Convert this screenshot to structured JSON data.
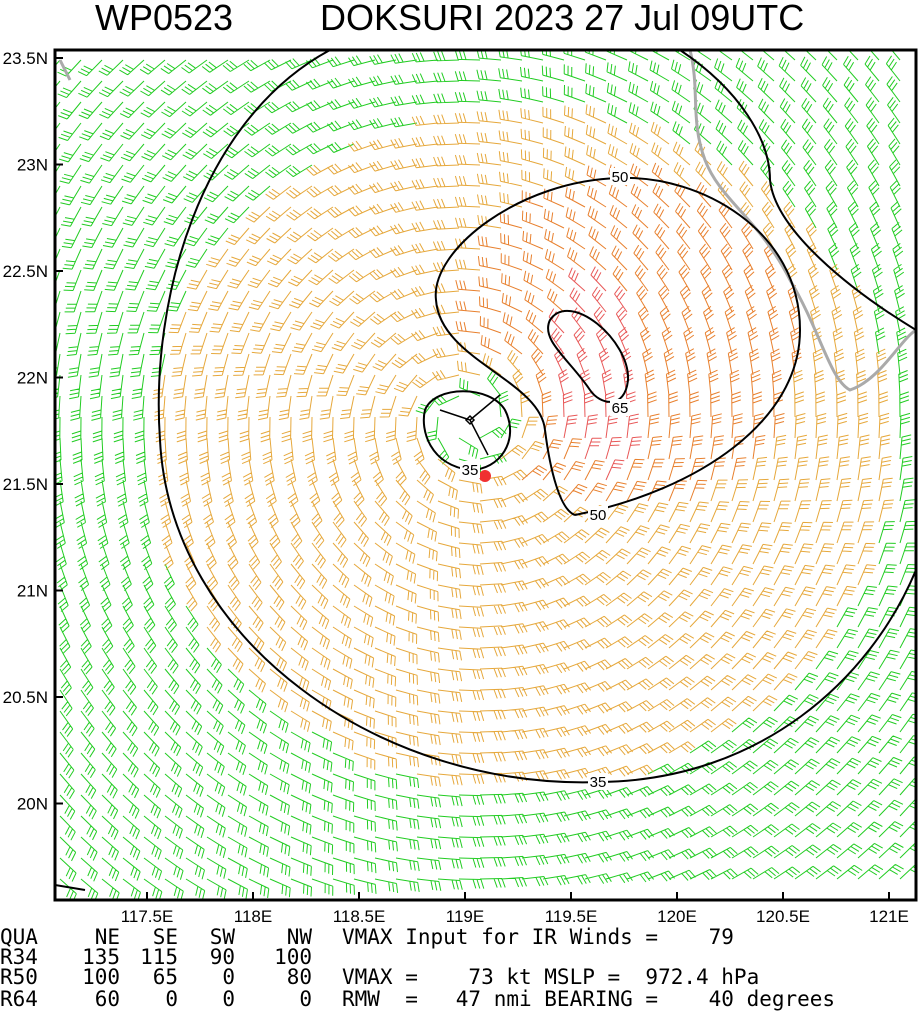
{
  "title": {
    "id": "WP0523",
    "storm": "DOKSURI 2023 27 Jul 09UTC"
  },
  "map": {
    "lat_labels": [
      "23.5N",
      "23N",
      "22.5N",
      "22N",
      "21.5N",
      "21N",
      "20.5N",
      "20N"
    ],
    "lon_labels": [
      "117.5E",
      "118E",
      "118.5E",
      "119E",
      "119.5E",
      "120E",
      "120.5E",
      "121E"
    ],
    "contour_labels": [
      "50",
      "65",
      "35",
      "50",
      "35"
    ]
  },
  "table": {
    "header": [
      "QUA",
      "NE",
      "SE",
      "SW",
      "NW"
    ],
    "rows": [
      [
        "R34",
        "135",
        "115",
        "90",
        "100"
      ],
      [
        "R50",
        "100",
        "65",
        "0",
        "80"
      ],
      [
        "R64",
        "60",
        "0",
        "0",
        "0"
      ]
    ],
    "notes": [
      "VMAX Input for IR Winds =    79",
      "VMAX =    73 kt MSLP =  972.4 hPa",
      "RMW  =   47 nmi BEARING =    40 degrees"
    ]
  }
}
